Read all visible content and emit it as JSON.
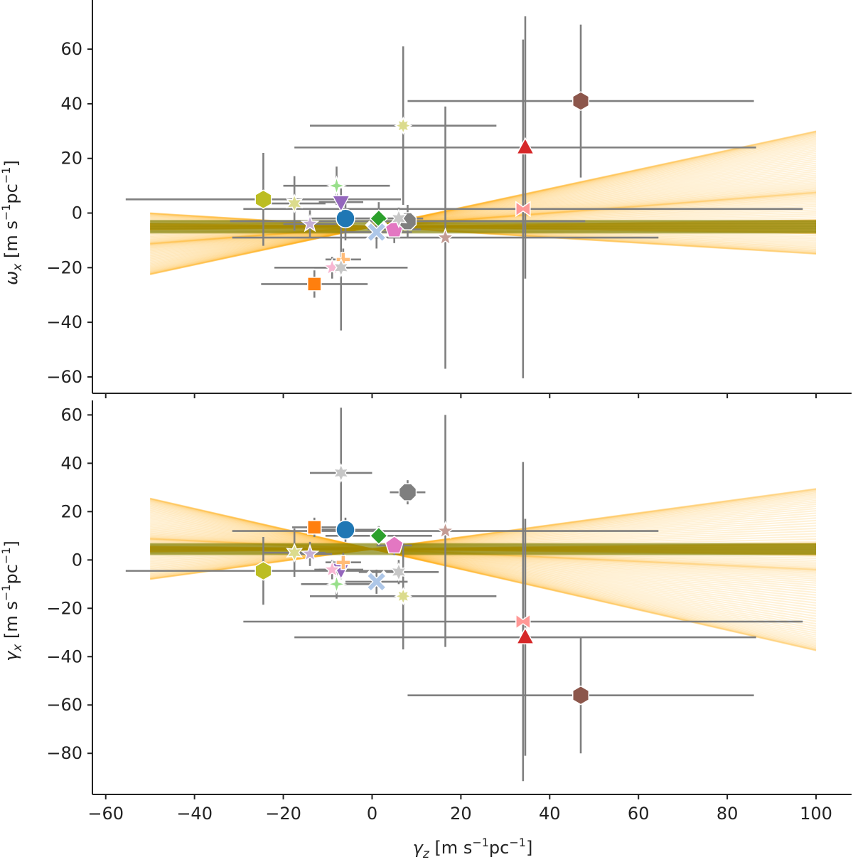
{
  "chart_data": [
    {
      "type": "scatter",
      "panel": "top",
      "ylabel": "ω_x [m s^-1 pc^-1]",
      "ylabel_main": "ω",
      "ylabel_sub": "x",
      "ylabel_unit_pre": " [m s",
      "ylabel_exp1": "−1",
      "ylabel_unit_mid": "pc",
      "ylabel_exp2": "−1",
      "ylabel_unit_post": "]",
      "xlim": [
        -63,
        108
      ],
      "ylim": [
        -66,
        78
      ],
      "yticks": [
        -60,
        -40,
        -20,
        0,
        20,
        40,
        60
      ],
      "ytick_labels": [
        "−60",
        "−40",
        "−20",
        "0",
        "20",
        "40",
        "60"
      ],
      "band": {
        "x_range": [
          -50,
          100
        ],
        "center": -5,
        "halfwidth": 2.5,
        "color": "#7f7f00"
      },
      "fit_lines": {
        "x_range": [
          -50,
          100
        ],
        "pivot_x": 0,
        "pivot_y": -5,
        "slope_min": -0.1,
        "slope_max": 0.35,
        "count": 90,
        "color": "#ffa500"
      },
      "points": [
        {
          "x": -6,
          "y": -2,
          "xerr": 8,
          "yerr": 8,
          "marker": "circle",
          "color": "#1f77b4"
        },
        {
          "x": -13,
          "y": -26,
          "xerr": 12,
          "yerr": 5,
          "marker": "square",
          "color": "#ff7f0e"
        },
        {
          "x": 1.5,
          "y": -2,
          "xerr": 10,
          "yerr": 6,
          "marker": "diamond",
          "color": "#2ca02c"
        },
        {
          "x": 34.5,
          "y": 24,
          "xerr": 52,
          "yerr": 48,
          "marker": "triangle-up",
          "color": "#d62728"
        },
        {
          "x": -7,
          "y": 4,
          "xerr": 5,
          "yerr": 5,
          "marker": "triangle-down",
          "color": "#9467bd"
        },
        {
          "x": 47,
          "y": 41,
          "xerr": 39,
          "yerr": 28,
          "marker": "hexagon",
          "color": "#8c564b"
        },
        {
          "x": 5,
          "y": -6,
          "xerr": 6,
          "yerr": 5,
          "marker": "pentagon",
          "color": "#e377c2"
        },
        {
          "x": 8,
          "y": -3,
          "xerr": 40,
          "yerr": 6,
          "marker": "octagon",
          "color": "#7f7f7f"
        },
        {
          "x": -24.5,
          "y": 5,
          "xerr": 31,
          "yerr": 17,
          "marker": "hexagon",
          "color": "#bcbd22"
        },
        {
          "x": 1,
          "y": -7,
          "xerr": 8,
          "yerr": 6,
          "marker": "x",
          "color": "#aec7e8"
        },
        {
          "x": -6.5,
          "y": -17,
          "xerr": 4,
          "yerr": 4,
          "marker": "plus",
          "color": "#ffbb78"
        },
        {
          "x": -8,
          "y": 10,
          "xerr": 12,
          "yerr": 7,
          "marker": "star4",
          "color": "#98df8a"
        },
        {
          "x": 34,
          "y": 1.5,
          "xerr": 63,
          "yerr": 62,
          "marker": "bowtie",
          "color": "#ff9896"
        },
        {
          "x": -14,
          "y": -4,
          "xerr": 6,
          "yerr": 5,
          "marker": "star5",
          "color": "#c5b0d5"
        },
        {
          "x": 16.5,
          "y": -9,
          "xerr": 48,
          "yerr": 48,
          "marker": "star5",
          "color": "#c49c94"
        },
        {
          "x": -9,
          "y": -20,
          "xerr": 4,
          "yerr": 4,
          "marker": "star5",
          "color": "#f7b6d2"
        },
        {
          "x": 6,
          "y": -2,
          "xerr": 4,
          "yerr": 4,
          "marker": "star6",
          "color": "#c7c7c7"
        },
        {
          "x": -7,
          "y": -20,
          "xerr": 15,
          "yerr": 23,
          "marker": "star6",
          "color": "#c7c7c7"
        },
        {
          "x": -17.5,
          "y": 3.5,
          "xerr": 7,
          "yerr": 10,
          "marker": "star6",
          "color": "#dbdb8d"
        },
        {
          "x": 7,
          "y": 32,
          "xerr": 21,
          "yerr": 29,
          "marker": "star8",
          "color": "#dbdb8d"
        }
      ]
    },
    {
      "type": "scatter",
      "panel": "bottom",
      "xlabel": "γ_z [m s^-1 pc^-1]",
      "xlabel_main": "γ",
      "xlabel_sub": "z",
      "xlabel_unit_pre": " [m s",
      "xlabel_exp1": "−1",
      "xlabel_unit_mid": "pc",
      "xlabel_exp2": "−1",
      "xlabel_unit_post": "]",
      "ylabel": "γ_x [m s^-1 pc^-1]",
      "ylabel_main": "γ",
      "ylabel_sub": "x",
      "ylabel_unit_pre": " [m s",
      "ylabel_exp1": "−1",
      "ylabel_unit_mid": "pc",
      "ylabel_exp2": "−1",
      "ylabel_unit_post": "]",
      "xlim": [
        -63,
        108
      ],
      "ylim": [
        -97,
        66
      ],
      "xticks": [
        -60,
        -40,
        -20,
        0,
        20,
        40,
        60,
        80,
        100
      ],
      "xtick_labels": [
        "−60",
        "−40",
        "−20",
        "0",
        "20",
        "40",
        "60",
        "80",
        "100"
      ],
      "yticks": [
        -80,
        -60,
        -40,
        -20,
        0,
        20,
        40,
        60
      ],
      "ytick_labels": [
        "−80",
        "−60",
        "−40",
        "−20",
        "0",
        "20",
        "40",
        "60"
      ],
      "band": {
        "x_range": [
          -50,
          100
        ],
        "center": 4.5,
        "halfwidth": 2.5,
        "color": "#7f7f00"
      },
      "fit_lines": {
        "x_range": [
          -50,
          100
        ],
        "pivot_x": 0,
        "pivot_y": 4.5,
        "slope_min": -0.42,
        "slope_max": 0.25,
        "count": 90,
        "color": "#ffa500"
      },
      "points": [
        {
          "x": -6,
          "y": 12.5,
          "xerr": 8,
          "yerr": 5,
          "marker": "circle",
          "color": "#1f77b4"
        },
        {
          "x": -13,
          "y": 13.5,
          "xerr": 5,
          "yerr": 4,
          "marker": "square",
          "color": "#ff7f0e"
        },
        {
          "x": 1.5,
          "y": 10,
          "xerr": 12,
          "yerr": 4,
          "marker": "diamond",
          "color": "#2ca02c"
        },
        {
          "x": 34.5,
          "y": -32,
          "xerr": 52,
          "yerr": 49,
          "marker": "triangle-up",
          "color": "#d62728"
        },
        {
          "x": -7,
          "y": -4,
          "xerr": 5,
          "yerr": 4,
          "marker": "triangle-down",
          "color": "#9467bd"
        },
        {
          "x": 47,
          "y": -56,
          "xerr": 39,
          "yerr": 24,
          "marker": "hexagon",
          "color": "#8c564b"
        },
        {
          "x": 5,
          "y": 6,
          "xerr": 4,
          "yerr": 4,
          "marker": "pentagon",
          "color": "#e377c2"
        },
        {
          "x": 8,
          "y": 28,
          "xerr": 4,
          "yerr": 5,
          "marker": "octagon",
          "color": "#7f7f7f"
        },
        {
          "x": -24.5,
          "y": -4.5,
          "xerr": 31,
          "yerr": 14,
          "marker": "hexagon",
          "color": "#bcbd22"
        },
        {
          "x": 1,
          "y": -9,
          "xerr": 7,
          "yerr": 5,
          "marker": "x",
          "color": "#aec7e8"
        },
        {
          "x": -6.5,
          "y": -1,
          "xerr": 4,
          "yerr": 4,
          "marker": "plus",
          "color": "#ffbb78"
        },
        {
          "x": -8,
          "y": -10,
          "xerr": 8,
          "yerr": 6,
          "marker": "star4",
          "color": "#98df8a"
        },
        {
          "x": 34,
          "y": -25.5,
          "xerr": 63,
          "yerr": 66,
          "marker": "bowtie",
          "color": "#ff9896"
        },
        {
          "x": -14,
          "y": 2.5,
          "xerr": 5,
          "yerr": 5,
          "marker": "star5",
          "color": "#c5b0d5"
        },
        {
          "x": 16.5,
          "y": 12,
          "xerr": 48,
          "yerr": 48,
          "marker": "star5",
          "color": "#c49c94"
        },
        {
          "x": -9,
          "y": -4,
          "xerr": 4,
          "yerr": 4,
          "marker": "star5",
          "color": "#f7b6d2"
        },
        {
          "x": 6,
          "y": -5,
          "xerr": 9,
          "yerr": 5,
          "marker": "star6",
          "color": "#c7c7c7"
        },
        {
          "x": -7,
          "y": 36,
          "xerr": 7,
          "yerr": 27,
          "marker": "star6",
          "color": "#c7c7c7"
        },
        {
          "x": -17.5,
          "y": 3,
          "xerr": 7,
          "yerr": 10,
          "marker": "star6",
          "color": "#dbdb8d"
        },
        {
          "x": 7,
          "y": -15,
          "xerr": 21,
          "yerr": 22,
          "marker": "star8",
          "color": "#dbdb8d"
        }
      ]
    }
  ],
  "colors": {
    "errorbar": "#7f7f7f",
    "axis": "#222222",
    "marker_edge": "#ffffff"
  }
}
